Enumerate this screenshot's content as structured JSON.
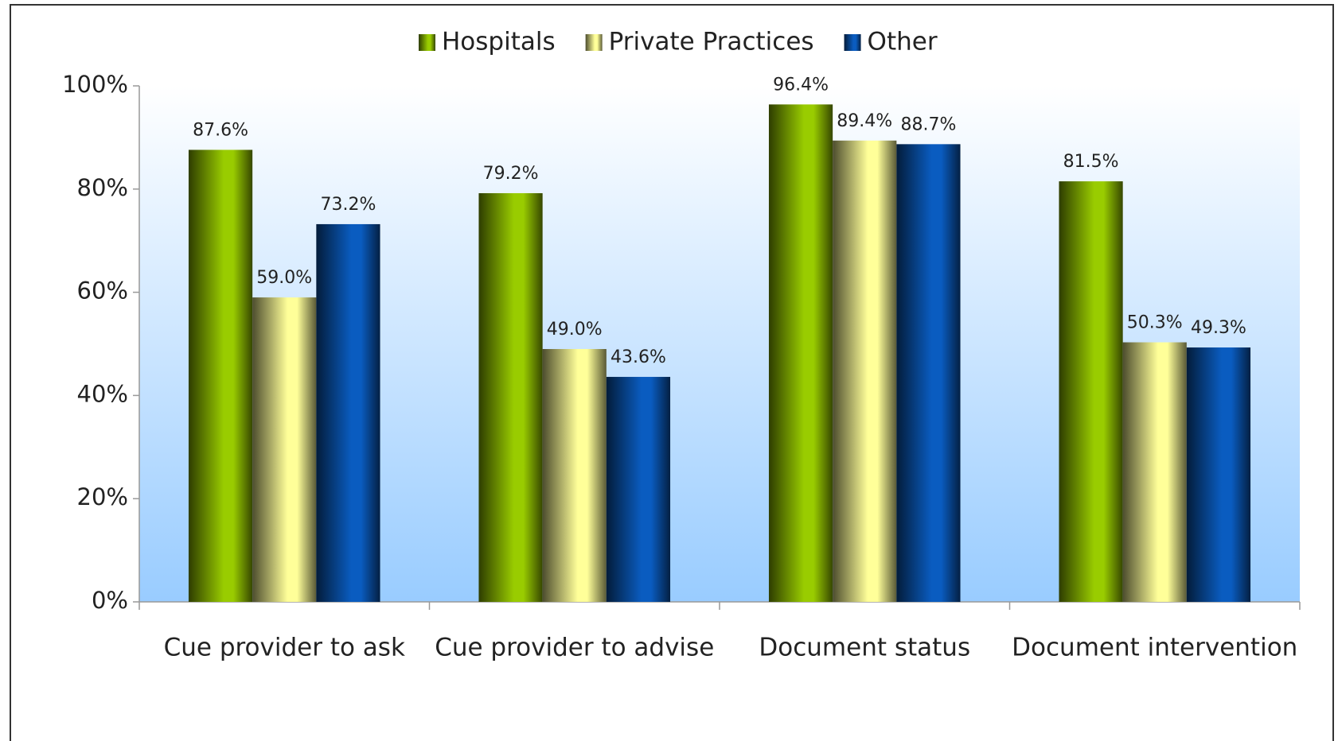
{
  "chart_data": {
    "type": "bar",
    "categories": [
      "Cue provider to ask",
      "Cue provider to advise",
      "Document status",
      "Document intervention"
    ],
    "series": [
      {
        "name": "Hospitals",
        "color": "#99cc00",
        "values": [
          87.6,
          79.2,
          96.4,
          81.5
        ],
        "value_labels": [
          "87.6%",
          "79.2%",
          "96.4%",
          "81.5%"
        ]
      },
      {
        "name": "Private Practices",
        "color": "#ffff99",
        "values": [
          59.0,
          49.0,
          89.4,
          50.3
        ],
        "value_labels": [
          "59.0%",
          "49.0%",
          "89.4%",
          "50.3%"
        ]
      },
      {
        "name": "Other",
        "color": "#0a5cc0",
        "values": [
          73.2,
          43.6,
          88.7,
          49.3
        ],
        "value_labels": [
          "73.2%",
          "43.6%",
          "88.7%",
          "49.3%"
        ]
      }
    ],
    "ylim": [
      0,
      100
    ],
    "yticks": [
      {
        "value": 0,
        "label": "0%"
      },
      {
        "value": 20,
        "label": "20%"
      },
      {
        "value": 40,
        "label": "40%"
      },
      {
        "value": 60,
        "label": "60%"
      },
      {
        "value": 80,
        "label": "80%"
      },
      {
        "value": 100,
        "label": "100%"
      }
    ],
    "grid": false,
    "legend": "top"
  }
}
